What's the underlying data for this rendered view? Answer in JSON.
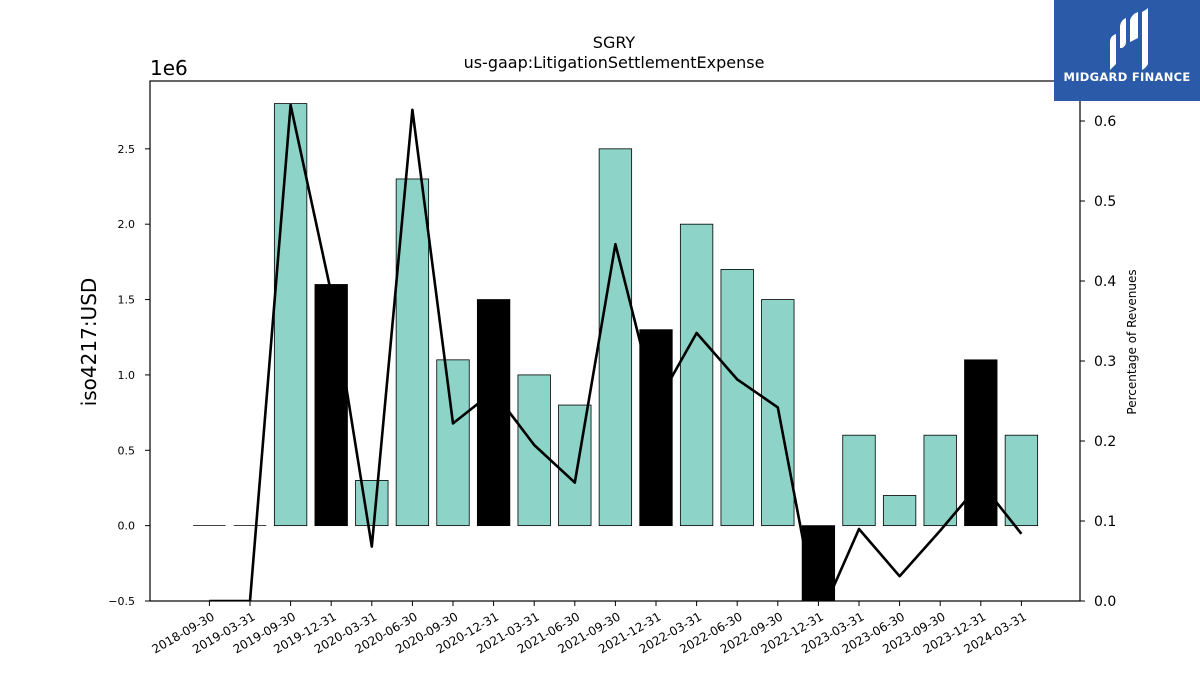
{
  "chart_data": {
    "type": "bar",
    "title": "SGRY",
    "subtitle": "us-gaap:LitigationSettlementExpense",
    "ylabel": "iso4217:USD",
    "y_offset_label": "1e6",
    "y2label": "Percentage of Revenues",
    "ylim": [
      -0.5,
      2.95
    ],
    "y2lim": [
      0.0,
      0.65
    ],
    "yticks": [
      "−0.5",
      "0.0",
      "0.5",
      "1.0",
      "1.5",
      "2.0",
      "2.5"
    ],
    "y2ticks": [
      "0.0",
      "0.1",
      "0.2",
      "0.3",
      "0.4",
      "0.5",
      "0.6"
    ],
    "categories": [
      "2018-09-30",
      "2019-03-31",
      "2019-09-30",
      "2019-12-31",
      "2020-03-31",
      "2020-06-30",
      "2020-09-30",
      "2020-12-31",
      "2021-03-31",
      "2021-06-30",
      "2021-09-30",
      "2021-12-31",
      "2022-03-31",
      "2022-06-30",
      "2022-09-30",
      "2022-12-31",
      "2023-03-31",
      "2023-06-30",
      "2023-09-30",
      "2023-12-31",
      "2024-03-31"
    ],
    "series": [
      {
        "type": "bar",
        "values": [
          0,
          0,
          2.8,
          1.6,
          0.3,
          2.3,
          1.1,
          1.5,
          1.0,
          0.8,
          2.5,
          1.3,
          2.0,
          1.7,
          1.5,
          -0.5,
          0.6,
          0.2,
          0.6,
          1.1,
          0.6
        ],
        "colors": [
          "#8dd3c7",
          "#8dd3c7",
          "#8dd3c7",
          "#000000",
          "#8dd3c7",
          "#8dd3c7",
          "#8dd3c7",
          "#000000",
          "#8dd3c7",
          "#8dd3c7",
          "#8dd3c7",
          "#000000",
          "#8dd3c7",
          "#8dd3c7",
          "#8dd3c7",
          "#000000",
          "#8dd3c7",
          "#8dd3c7",
          "#8dd3c7",
          "#000000",
          "#8dd3c7"
        ]
      },
      {
        "type": "line",
        "axis": "right",
        "color": "#000000",
        "values": [
          0.0,
          0.0,
          0.62,
          0.385,
          0.068,
          0.614,
          0.222,
          0.262,
          0.195,
          0.148,
          0.446,
          0.245,
          0.335,
          0.277,
          0.242,
          -0.025,
          0.09,
          0.031,
          0.088,
          0.148,
          0.084
        ]
      }
    ],
    "grid": false,
    "legend": "none"
  },
  "logo": {
    "text": "MIDGARD FINANCE",
    "background": "#2a5aa8"
  }
}
